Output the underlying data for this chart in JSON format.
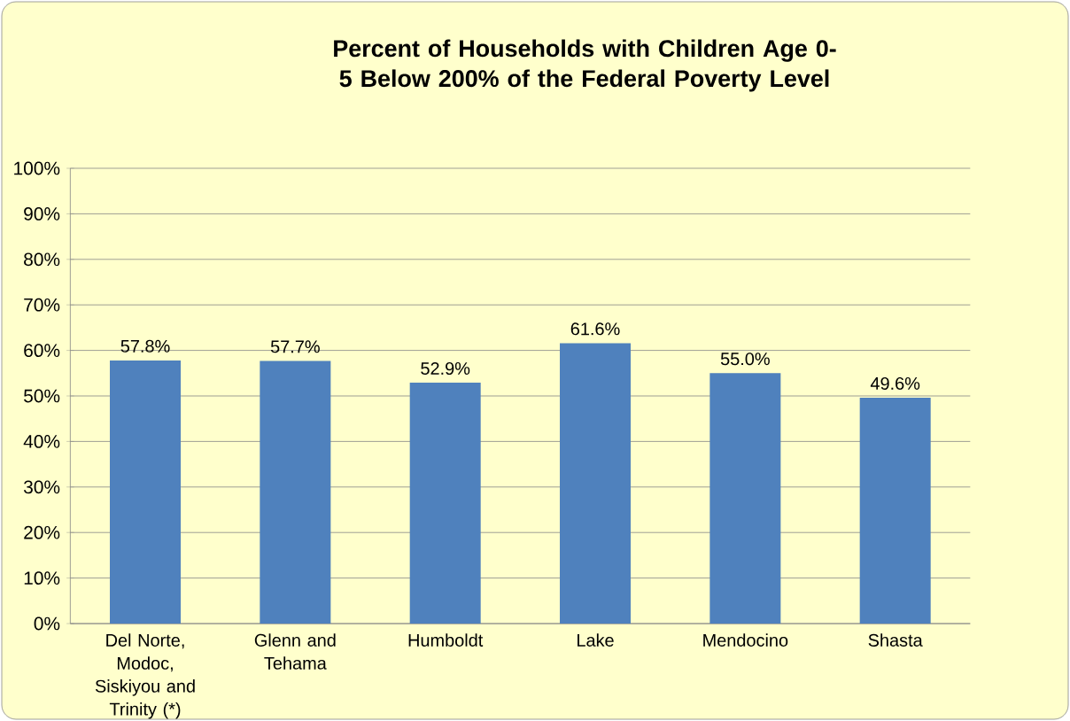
{
  "chart_data": {
    "type": "bar",
    "title": "Percent of Households with Children Age 0-5 Below 200% of the Federal Poverty Level",
    "categories": [
      "Del Norte, Modoc, Siskiyou and Trinity (*)",
      "Glenn and Tehama",
      "Humboldt",
      "Lake",
      "Mendocino",
      "Shasta"
    ],
    "values": [
      57.8,
      57.7,
      52.9,
      61.6,
      55.0,
      49.6
    ],
    "value_labels": [
      "57.8%",
      "57.7%",
      "52.9%",
      "61.6%",
      "55.0%",
      "49.6%"
    ],
    "color": "#4f81bd",
    "ylim": [
      0,
      100
    ],
    "yticks": [
      {
        "value": 0,
        "label": "0%"
      },
      {
        "value": 10,
        "label": "10%"
      },
      {
        "value": 20,
        "label": "20%"
      },
      {
        "value": 30,
        "label": "30%"
      },
      {
        "value": 40,
        "label": "40%"
      },
      {
        "value": 50,
        "label": "50%"
      },
      {
        "value": 60,
        "label": "60%"
      },
      {
        "value": 70,
        "label": "70%"
      },
      {
        "value": 80,
        "label": "80%"
      },
      {
        "value": 90,
        "label": "90%"
      },
      {
        "value": 100,
        "label": "100%"
      }
    ],
    "grid": "y"
  }
}
